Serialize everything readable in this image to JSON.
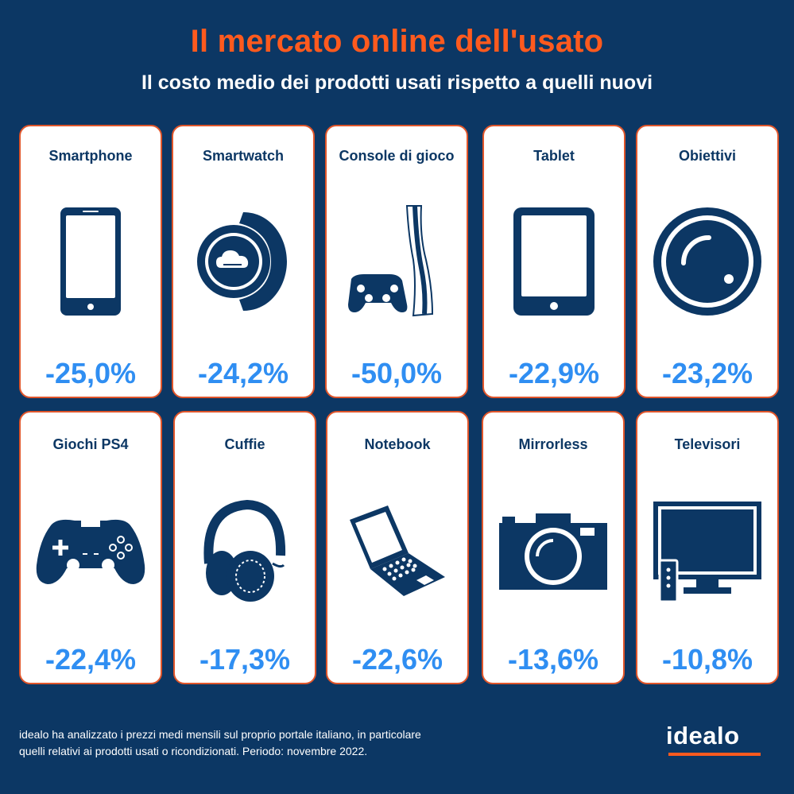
{
  "title": "Il mercato online dell'usato",
  "subtitle": "Il costo medio dei prodotti usati rispetto a quelli nuovi",
  "cards": [
    {
      "name": "Smartphone",
      "value": "-25,0%",
      "icon": "smartphone-icon"
    },
    {
      "name": "Smartwatch",
      "value": "-24,2%",
      "icon": "smartwatch-icon"
    },
    {
      "name": "Console di gioco",
      "value": "-50,0%",
      "icon": "game-console-icon"
    },
    {
      "name": "Tablet",
      "value": "-22,9%",
      "icon": "tablet-icon"
    },
    {
      "name": "Obiettivi",
      "value": "-23,2%",
      "icon": "camera-lens-icon"
    },
    {
      "name": "Giochi PS4",
      "value": "-22,4%",
      "icon": "gamepad-icon"
    },
    {
      "name": "Cuffie",
      "value": "-17,3%",
      "icon": "headphones-icon"
    },
    {
      "name": "Notebook",
      "value": "-22,6%",
      "icon": "laptop-icon"
    },
    {
      "name": "Mirrorless",
      "value": "-13,6%",
      "icon": "camera-icon"
    },
    {
      "name": "Televisori",
      "value": "-10,8%",
      "icon": "television-icon"
    }
  ],
  "footer": {
    "line1": "idealo ha analizzato i prezzi medi mensili sul proprio portale italiano, in particolare",
    "line2": "quelli relativi ai prodotti usati o ricondizionati. Periodo: novembre 2022."
  },
  "logo": "idealo",
  "colors": {
    "background": "#0c3764",
    "title": "#ff5a1e",
    "card_border": "#e0552a",
    "value": "#2f8ef2",
    "icon": "#0c3764"
  }
}
